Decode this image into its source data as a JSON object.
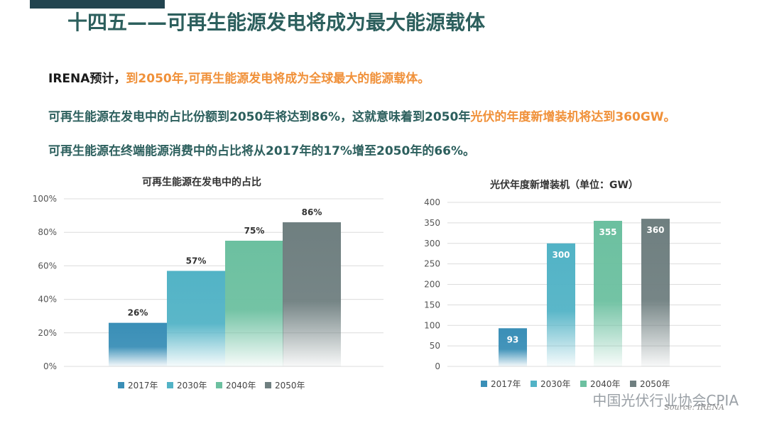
{
  "header": {
    "title": "十四五——可再生能源发电将成为最大能源载体"
  },
  "bullets": {
    "line1_prefix": "IRENA预计，",
    "line1_highlight": "到2050年,可再生能源发电将成为全球最大的能源载体。",
    "line2_prefix": "可再生能源在发电中的占比份额到2050年将达到86%，这就意味着到2050年",
    "line2_highlight": "光伏的年度新增装机将达到360GW。",
    "line3": "可再生能源在终端能源消费中的占比将从2017年的17%增至2050年的66%。"
  },
  "footer": {
    "watermark": "中国光伏行业协会CPIA",
    "source": "Source: IRENA"
  },
  "colors": {
    "s2017": "#3a8fb7",
    "s2030": "#52b3c6",
    "s2040": "#6cc0a0",
    "s2050": "#6f7f80",
    "accent": "#f0913a",
    "title": "#2c5f5d"
  },
  "chart_data": [
    {
      "type": "bar",
      "title": "可再生能源在发电中的占比",
      "categories": [
        "2017年",
        "2030年",
        "2040年",
        "2050年"
      ],
      "values": [
        26,
        57,
        75,
        86
      ],
      "labels": [
        "26%",
        "57%",
        "75%",
        "86%"
      ],
      "yticks": [
        "0%",
        "20%",
        "40%",
        "60%",
        "80%",
        "100%"
      ],
      "ylim": [
        0,
        100
      ],
      "legend": "bottom"
    },
    {
      "type": "bar",
      "title": "光伏年度新增装机（单位：GW）",
      "categories": [
        "2017年",
        "2030年",
        "2040年",
        "2050年"
      ],
      "values": [
        93,
        300,
        355,
        360
      ],
      "labels": [
        "93",
        "300",
        "355",
        "360"
      ],
      "yticks": [
        "0",
        "50",
        "100",
        "150",
        "200",
        "250",
        "300",
        "350",
        "400"
      ],
      "ylim": [
        0,
        400
      ],
      "legend": "bottom"
    }
  ]
}
